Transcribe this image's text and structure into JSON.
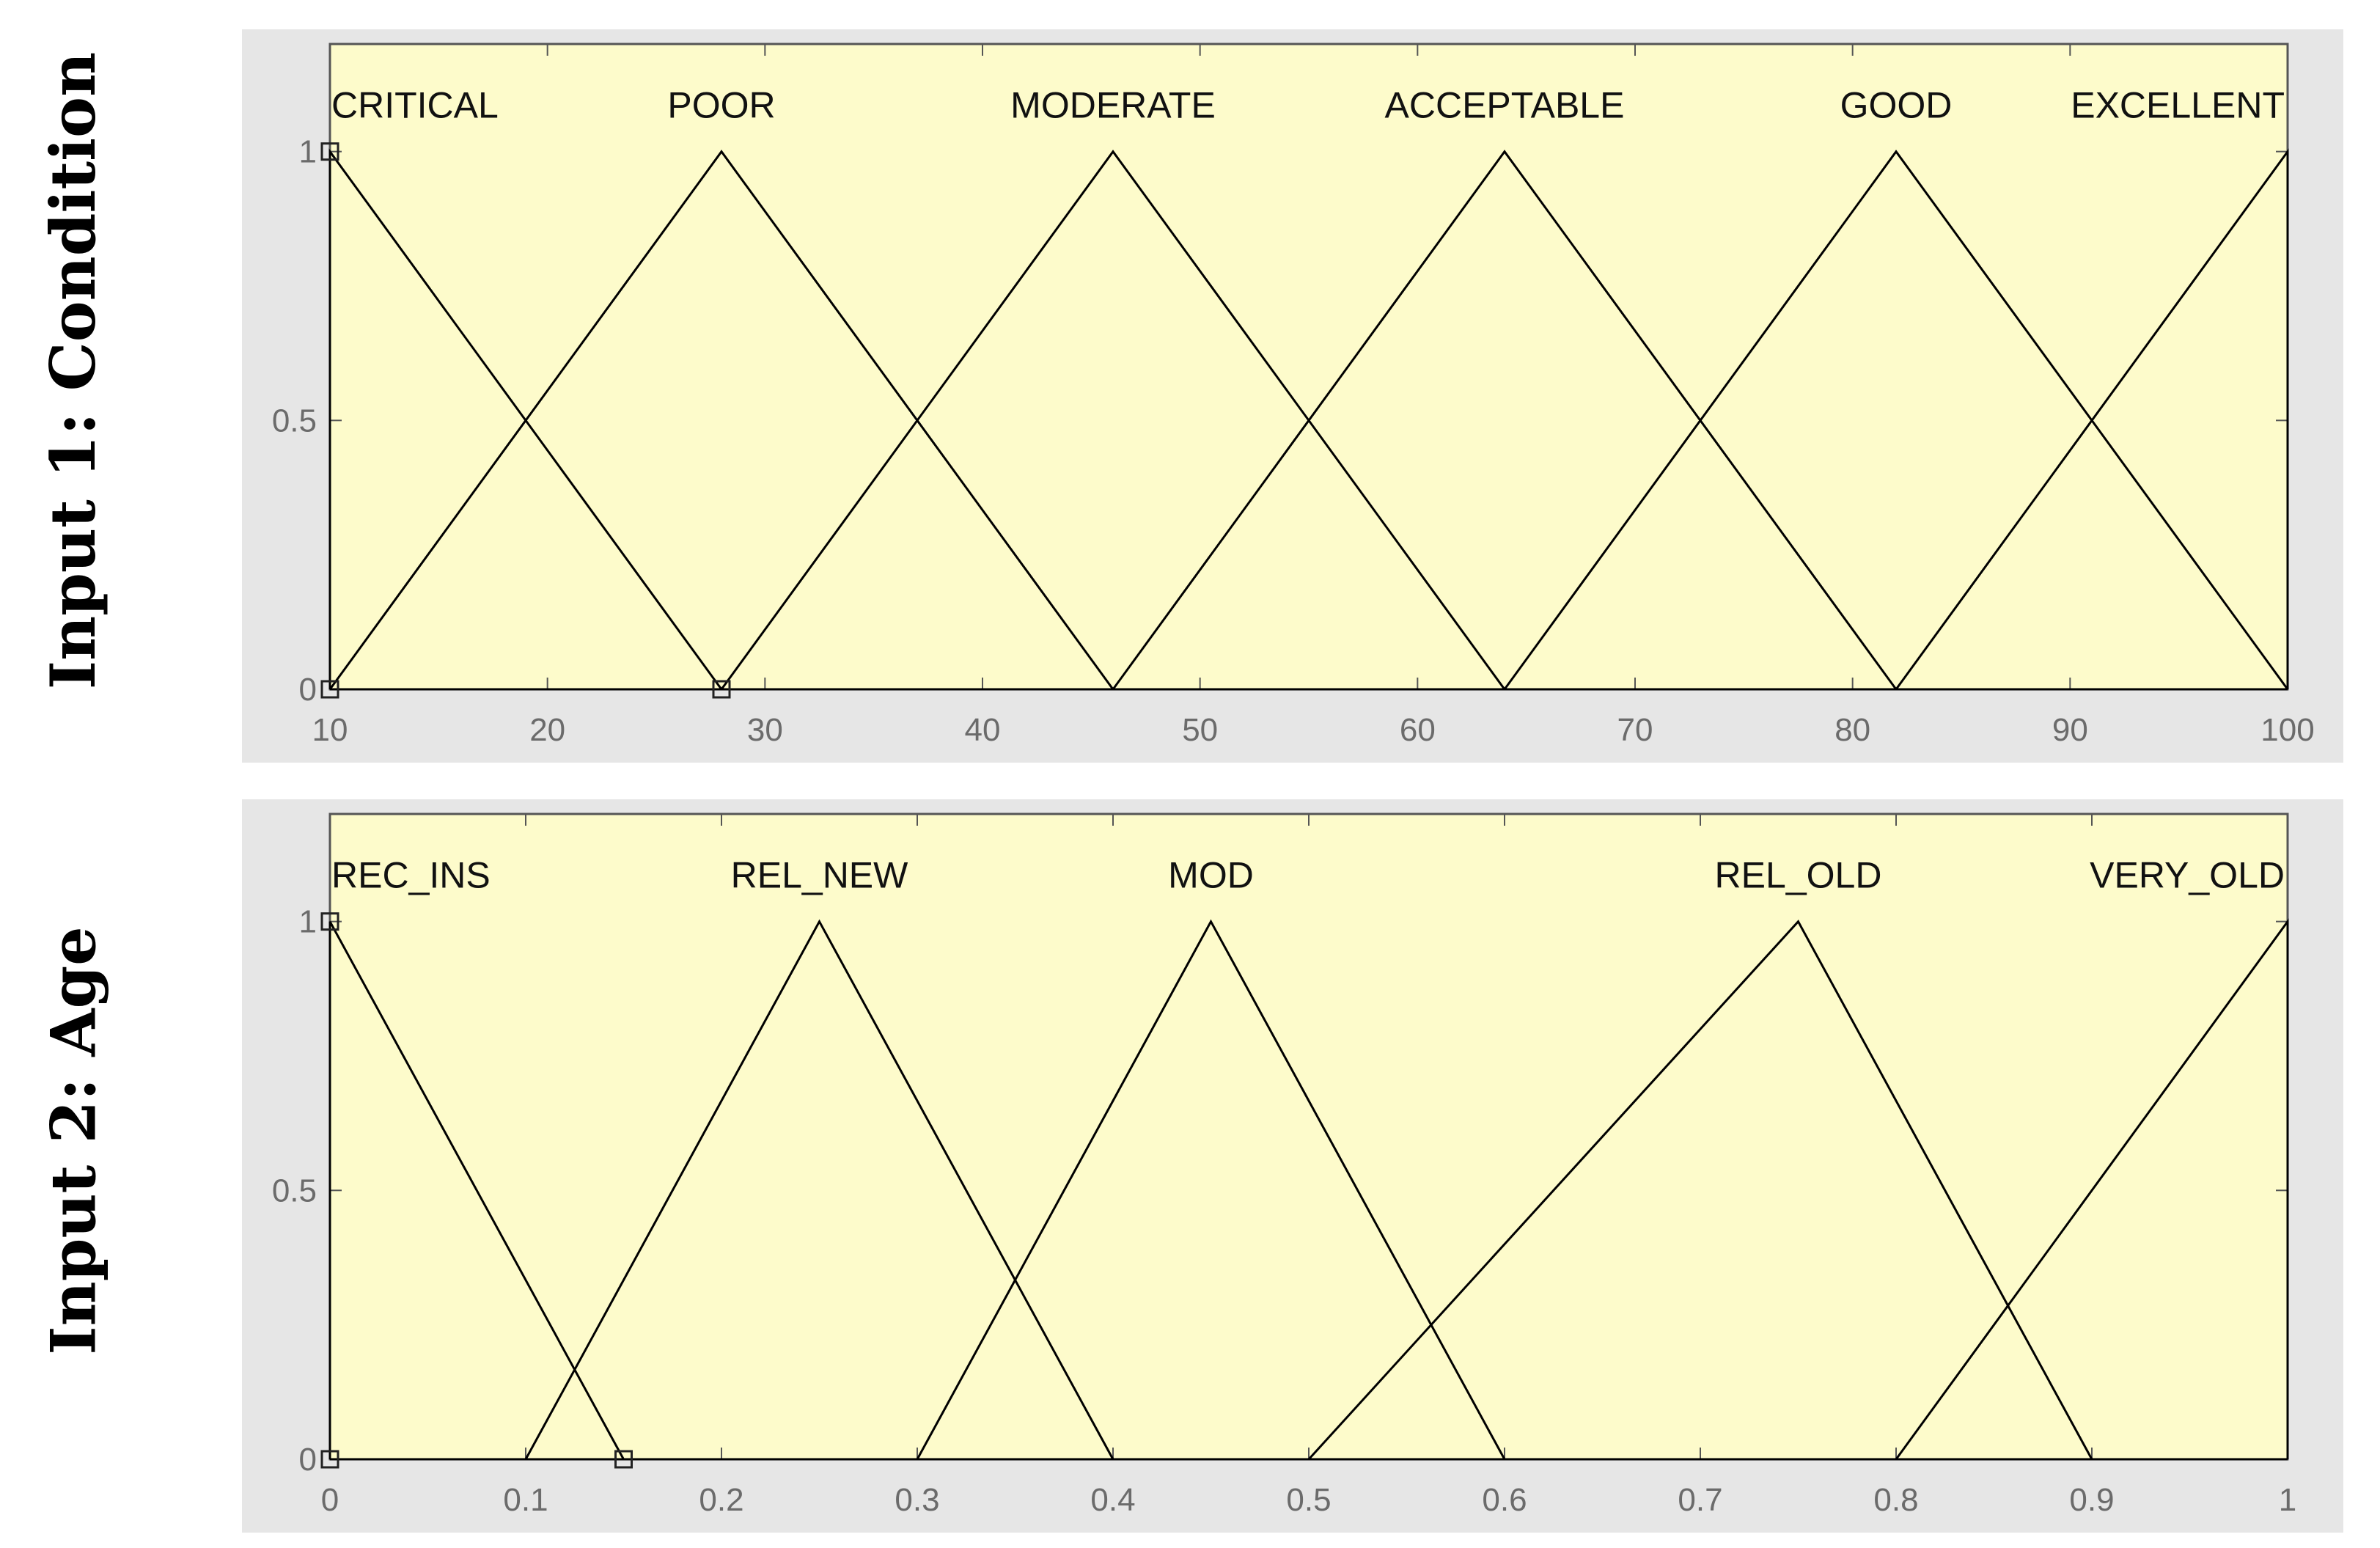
{
  "chart_data": [
    {
      "type": "line",
      "ylabel": "Input 1: Condition",
      "xlim": [
        10,
        100
      ],
      "ylim": [
        0,
        1.2
      ],
      "xticks": [
        "10",
        "20",
        "30",
        "40",
        "50",
        "60",
        "70",
        "80",
        "90",
        "100"
      ],
      "xtick_values": [
        10,
        20,
        30,
        40,
        50,
        60,
        70,
        80,
        90,
        100
      ],
      "yticks": [
        "0",
        "0.5",
        "1"
      ],
      "ytick_values": [
        0,
        0.5,
        1
      ],
      "series": [
        {
          "name": "CRITICAL",
          "x": [
            10,
            10,
            28
          ],
          "y": [
            0,
            1,
            0
          ]
        },
        {
          "name": "POOR",
          "x": [
            10,
            28,
            46
          ],
          "y": [
            0,
            1,
            0
          ]
        },
        {
          "name": "MODERATE",
          "x": [
            28,
            46,
            64
          ],
          "y": [
            0,
            1,
            0
          ]
        },
        {
          "name": "ACCEPTABLE",
          "x": [
            46,
            64,
            82
          ],
          "y": [
            0,
            1,
            0
          ]
        },
        {
          "name": "GOOD",
          "x": [
            64,
            82,
            100
          ],
          "y": [
            0,
            1,
            0
          ]
        },
        {
          "name": "EXCELLENT",
          "x": [
            82,
            100,
            100
          ],
          "y": [
            0,
            1,
            0
          ]
        }
      ],
      "markers": [
        [
          10,
          1
        ],
        [
          10,
          0
        ],
        [
          28,
          0
        ]
      ],
      "plot_bg": "#fdfbcb",
      "figure_bg": "#e6e6e6",
      "line_color": "#000000"
    },
    {
      "type": "line",
      "ylabel": "Input 2: Age",
      "xlim": [
        0,
        1
      ],
      "ylim": [
        0,
        1.2
      ],
      "xticks": [
        "0",
        "0.1",
        "0.2",
        "0.3",
        "0.4",
        "0.5",
        "0.6",
        "0.7",
        "0.8",
        "0.9",
        "1"
      ],
      "xtick_values": [
        0,
        0.1,
        0.2,
        0.3,
        0.4,
        0.5,
        0.6,
        0.7,
        0.8,
        0.9,
        1
      ],
      "yticks": [
        "0",
        "0.5",
        "1"
      ],
      "ytick_values": [
        0,
        0.5,
        1
      ],
      "series": [
        {
          "name": "REC_INS",
          "x": [
            0,
            0,
            0.15
          ],
          "y": [
            0,
            1,
            0
          ]
        },
        {
          "name": "REL_NEW",
          "x": [
            0.1,
            0.25,
            0.4
          ],
          "y": [
            0,
            1,
            0
          ]
        },
        {
          "name": "MOD",
          "x": [
            0.3,
            0.45,
            0.6
          ],
          "y": [
            0,
            1,
            0
          ]
        },
        {
          "name": "REL_OLD",
          "x": [
            0.5,
            0.75,
            0.9
          ],
          "y": [
            0,
            1,
            0
          ]
        },
        {
          "name": "VERY_OLD",
          "x": [
            0.8,
            1,
            1
          ],
          "y": [
            0,
            1,
            0
          ]
        }
      ],
      "markers": [
        [
          0,
          1
        ],
        [
          0,
          0
        ],
        [
          0.15,
          0
        ]
      ],
      "plot_bg": "#fdfbcb",
      "figure_bg": "#e6e6e6",
      "line_color": "#000000"
    }
  ]
}
